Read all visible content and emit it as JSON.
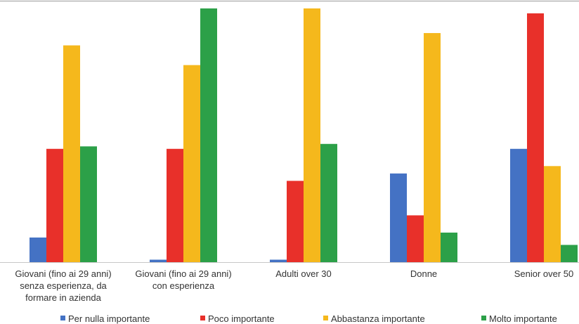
{
  "chart_data": {
    "type": "bar",
    "categories": [
      [
        "Giovani (fino ai 29 anni)",
        "senza esperienza, da",
        "formare in azienda"
      ],
      [
        "Giovani (fino ai 29 anni)",
        "con esperienza"
      ],
      [
        "Adulti over 30"
      ],
      [
        "Donne"
      ],
      [
        "Senior over 50"
      ]
    ],
    "series": [
      {
        "name": "Per nulla importante",
        "color": "#4472C4",
        "values": [
          10,
          1,
          1,
          36,
          46
        ]
      },
      {
        "name": "Poco importante",
        "color": "#E8302A",
        "values": [
          46,
          46,
          33,
          19,
          101
        ]
      },
      {
        "name": "Abbastanza importante",
        "color": "#F5B81C",
        "values": [
          88,
          80,
          103,
          93,
          39
        ]
      },
      {
        "name": "Molto importante",
        "color": "#2CA048",
        "values": [
          47,
          103,
          48,
          12,
          7
        ]
      }
    ],
    "ylim": [
      0,
      103
    ],
    "grid": false,
    "legend_position": "bottom"
  }
}
